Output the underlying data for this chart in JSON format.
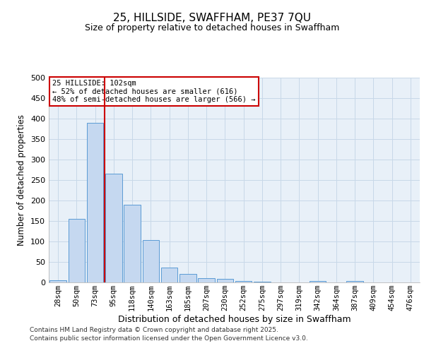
{
  "title_line1": "25, HILLSIDE, SWAFFHAM, PE37 7QU",
  "title_line2": "Size of property relative to detached houses in Swaffham",
  "xlabel": "Distribution of detached houses by size in Swaffham",
  "ylabel": "Number of detached properties",
  "categories": [
    "28sqm",
    "50sqm",
    "73sqm",
    "95sqm",
    "118sqm",
    "140sqm",
    "163sqm",
    "185sqm",
    "207sqm",
    "230sqm",
    "252sqm",
    "275sqm",
    "297sqm",
    "319sqm",
    "342sqm",
    "364sqm",
    "387sqm",
    "409sqm",
    "454sqm",
    "476sqm"
  ],
  "values": [
    5,
    155,
    390,
    265,
    190,
    103,
    36,
    21,
    10,
    8,
    4,
    2,
    0,
    0,
    4,
    0,
    4,
    0,
    0,
    0
  ],
  "bar_color": "#c5d8f0",
  "bar_edge_color": "#5b9bd5",
  "red_line_x": 2.5,
  "red_line_color": "#cc0000",
  "annotation_text": "25 HILLSIDE: 102sqm\n← 52% of detached houses are smaller (616)\n48% of semi-detached houses are larger (566) →",
  "annotation_box_color": "#ffffff",
  "annotation_box_edge": "#cc0000",
  "ylim": [
    0,
    500
  ],
  "yticks": [
    0,
    50,
    100,
    150,
    200,
    250,
    300,
    350,
    400,
    450,
    500
  ],
  "background_color": "#ffffff",
  "grid_color": "#c8d8e8",
  "footer_line1": "Contains HM Land Registry data © Crown copyright and database right 2025.",
  "footer_line2": "Contains public sector information licensed under the Open Government Licence v3.0."
}
